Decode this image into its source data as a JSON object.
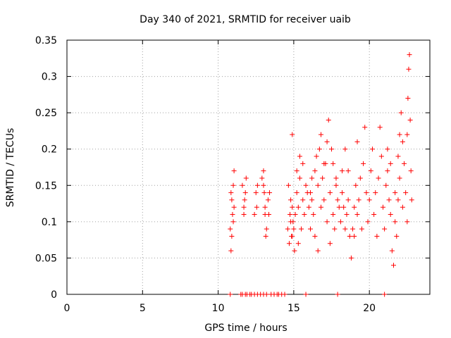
{
  "chart_data": {
    "type": "scatter",
    "title": "Day 340 of 2021, SRMTID for receiver uaib",
    "xlabel": "GPS time / hours",
    "ylabel": "SRMTID / TECUs",
    "xlim": [
      0,
      24
    ],
    "ylim": [
      0,
      0.35
    ],
    "grid": true,
    "marker": "plus",
    "color": "#ff0000",
    "x_ticks": [
      0,
      5,
      10,
      15,
      20
    ],
    "x_tick_labels": [
      "0",
      "5",
      "10",
      "15",
      "20"
    ],
    "y_ticks": [
      0,
      0.05,
      0.1,
      0.15,
      0.2,
      0.25,
      0.3,
      0.35
    ],
    "y_tick_labels": [
      "0",
      "0.05",
      "0.1",
      "0.15",
      "0.2",
      "0.25",
      "0.3",
      "0.35"
    ],
    "series": [
      {
        "name": "SRMTID",
        "points": [
          [
            10.8,
            0.09
          ],
          [
            10.85,
            0.06
          ],
          [
            10.9,
            0.13
          ],
          [
            10.95,
            0.11
          ],
          [
            11.0,
            0.15
          ],
          [
            11.05,
            0.17
          ],
          [
            10.9,
            0.08
          ],
          [
            11.0,
            0.1
          ],
          [
            10.85,
            0.14
          ],
          [
            11.05,
            0.12
          ],
          [
            11.6,
            0.15
          ],
          [
            11.7,
            0.11
          ],
          [
            11.75,
            0.13
          ],
          [
            11.8,
            0.14
          ],
          [
            11.85,
            0.16
          ],
          [
            11.7,
            0.12
          ],
          [
            12.4,
            0.11
          ],
          [
            12.5,
            0.14
          ],
          [
            12.55,
            0.12
          ],
          [
            12.6,
            0.15
          ],
          [
            12.9,
            0.16
          ],
          [
            13.0,
            0.17
          ],
          [
            13.05,
            0.14
          ],
          [
            13.1,
            0.12
          ],
          [
            13.15,
            0.08
          ],
          [
            13.2,
            0.09
          ],
          [
            13.0,
            0.15
          ],
          [
            13.1,
            0.11
          ],
          [
            13.3,
            0.13
          ],
          [
            13.35,
            0.11
          ],
          [
            13.4,
            0.14
          ],
          [
            14.6,
            0.09
          ],
          [
            14.65,
            0.15
          ],
          [
            14.7,
            0.07
          ],
          [
            14.75,
            0.11
          ],
          [
            14.8,
            0.13
          ],
          [
            14.85,
            0.08
          ],
          [
            14.9,
            0.12
          ],
          [
            14.95,
            0.1
          ],
          [
            15.0,
            0.09
          ],
          [
            15.05,
            0.06
          ],
          [
            14.8,
            0.1
          ],
          [
            14.9,
            0.08
          ],
          [
            15.1,
            0.11
          ],
          [
            15.2,
            0.14
          ],
          [
            15.3,
            0.12
          ],
          [
            15.4,
            0.16
          ],
          [
            15.5,
            0.09
          ],
          [
            15.6,
            0.13
          ],
          [
            15.7,
            0.11
          ],
          [
            15.8,
            0.15
          ],
          [
            14.9,
            0.22
          ],
          [
            15.2,
            0.17
          ],
          [
            15.4,
            0.19
          ],
          [
            15.6,
            0.18
          ],
          [
            15.9,
            0.14
          ],
          [
            16.0,
            0.12
          ],
          [
            16.1,
            0.09
          ],
          [
            16.2,
            0.16
          ],
          [
            16.3,
            0.11
          ],
          [
            16.4,
            0.17
          ],
          [
            16.5,
            0.19
          ],
          [
            16.6,
            0.15
          ],
          [
            16.7,
            0.2
          ],
          [
            16.8,
            0.22
          ],
          [
            16.9,
            0.16
          ],
          [
            17.0,
            0.13
          ],
          [
            17.1,
            0.18
          ],
          [
            17.2,
            0.21
          ],
          [
            17.3,
            0.24
          ],
          [
            17.4,
            0.14
          ],
          [
            16.2,
            0.13
          ],
          [
            16.4,
            0.08
          ],
          [
            16.6,
            0.06
          ],
          [
            16.8,
            0.12
          ],
          [
            17.0,
            0.18
          ],
          [
            17.2,
            0.1
          ],
          [
            17.4,
            0.07
          ],
          [
            17.6,
            0.11
          ],
          [
            17.8,
            0.15
          ],
          [
            18.0,
            0.12
          ],
          [
            17.5,
            0.2
          ],
          [
            17.6,
            0.18
          ],
          [
            17.7,
            0.09
          ],
          [
            17.8,
            0.16
          ],
          [
            17.9,
            0.13
          ],
          [
            18.1,
            0.1
          ],
          [
            18.2,
            0.14
          ],
          [
            18.3,
            0.12
          ],
          [
            18.4,
            0.09
          ],
          [
            18.5,
            0.11
          ],
          [
            18.2,
            0.17
          ],
          [
            18.4,
            0.2
          ],
          [
            18.6,
            0.13
          ],
          [
            18.7,
            0.08
          ],
          [
            18.8,
            0.05
          ],
          [
            18.9,
            0.09
          ],
          [
            19.0,
            0.12
          ],
          [
            19.1,
            0.15
          ],
          [
            19.2,
            0.11
          ],
          [
            19.3,
            0.13
          ],
          [
            19.2,
            0.21
          ],
          [
            19.4,
            0.16
          ],
          [
            19.5,
            0.09
          ],
          [
            19.6,
            0.18
          ],
          [
            19.7,
            0.23
          ],
          [
            19.8,
            0.14
          ],
          [
            19.9,
            0.1
          ],
          [
            20.0,
            0.13
          ],
          [
            20.1,
            0.17
          ],
          [
            20.2,
            0.2
          ],
          [
            20.3,
            0.11
          ],
          [
            20.4,
            0.14
          ],
          [
            20.5,
            0.08
          ],
          [
            20.6,
            0.16
          ],
          [
            20.7,
            0.23
          ],
          [
            20.8,
            0.19
          ],
          [
            20.9,
            0.12
          ],
          [
            21.0,
            0.09
          ],
          [
            21.1,
            0.15
          ],
          [
            21.2,
            0.17
          ],
          [
            21.3,
            0.13
          ],
          [
            21.4,
            0.11
          ],
          [
            21.5,
            0.06
          ],
          [
            21.6,
            0.04
          ],
          [
            21.7,
            0.1
          ],
          [
            21.8,
            0.08
          ],
          [
            21.9,
            0.13
          ],
          [
            22.0,
            0.16
          ],
          [
            22.1,
            0.25
          ],
          [
            22.2,
            0.21
          ],
          [
            22.3,
            0.18
          ],
          [
            22.4,
            0.14
          ],
          [
            22.5,
            0.1
          ],
          [
            22.55,
            0.27
          ],
          [
            22.6,
            0.31
          ],
          [
            22.65,
            0.33
          ],
          [
            22.7,
            0.24
          ],
          [
            22.75,
            0.17
          ],
          [
            22.8,
            0.13
          ],
          [
            22.5,
            0.22
          ],
          [
            21.2,
            0.2
          ],
          [
            21.4,
            0.18
          ],
          [
            21.7,
            0.14
          ],
          [
            21.9,
            0.19
          ],
          [
            22.0,
            0.22
          ],
          [
            22.2,
            0.12
          ],
          [
            19.0,
            0.08
          ],
          [
            18.6,
            0.17
          ],
          [
            16.1,
            0.14
          ],
          [
            15.3,
            0.07
          ],
          [
            10.8,
            0
          ],
          [
            11.5,
            0
          ],
          [
            11.6,
            0
          ],
          [
            11.8,
            0
          ],
          [
            11.9,
            0
          ],
          [
            12.1,
            0
          ],
          [
            12.2,
            0
          ],
          [
            12.4,
            0
          ],
          [
            12.6,
            0
          ],
          [
            12.8,
            0
          ],
          [
            13.0,
            0
          ],
          [
            13.2,
            0
          ],
          [
            13.5,
            0
          ],
          [
            13.7,
            0
          ],
          [
            13.9,
            0
          ],
          [
            14.0,
            0
          ],
          [
            14.2,
            0
          ],
          [
            14.4,
            0
          ],
          [
            15.8,
            0
          ],
          [
            17.9,
            0
          ],
          [
            21.0,
            0
          ]
        ]
      }
    ]
  }
}
